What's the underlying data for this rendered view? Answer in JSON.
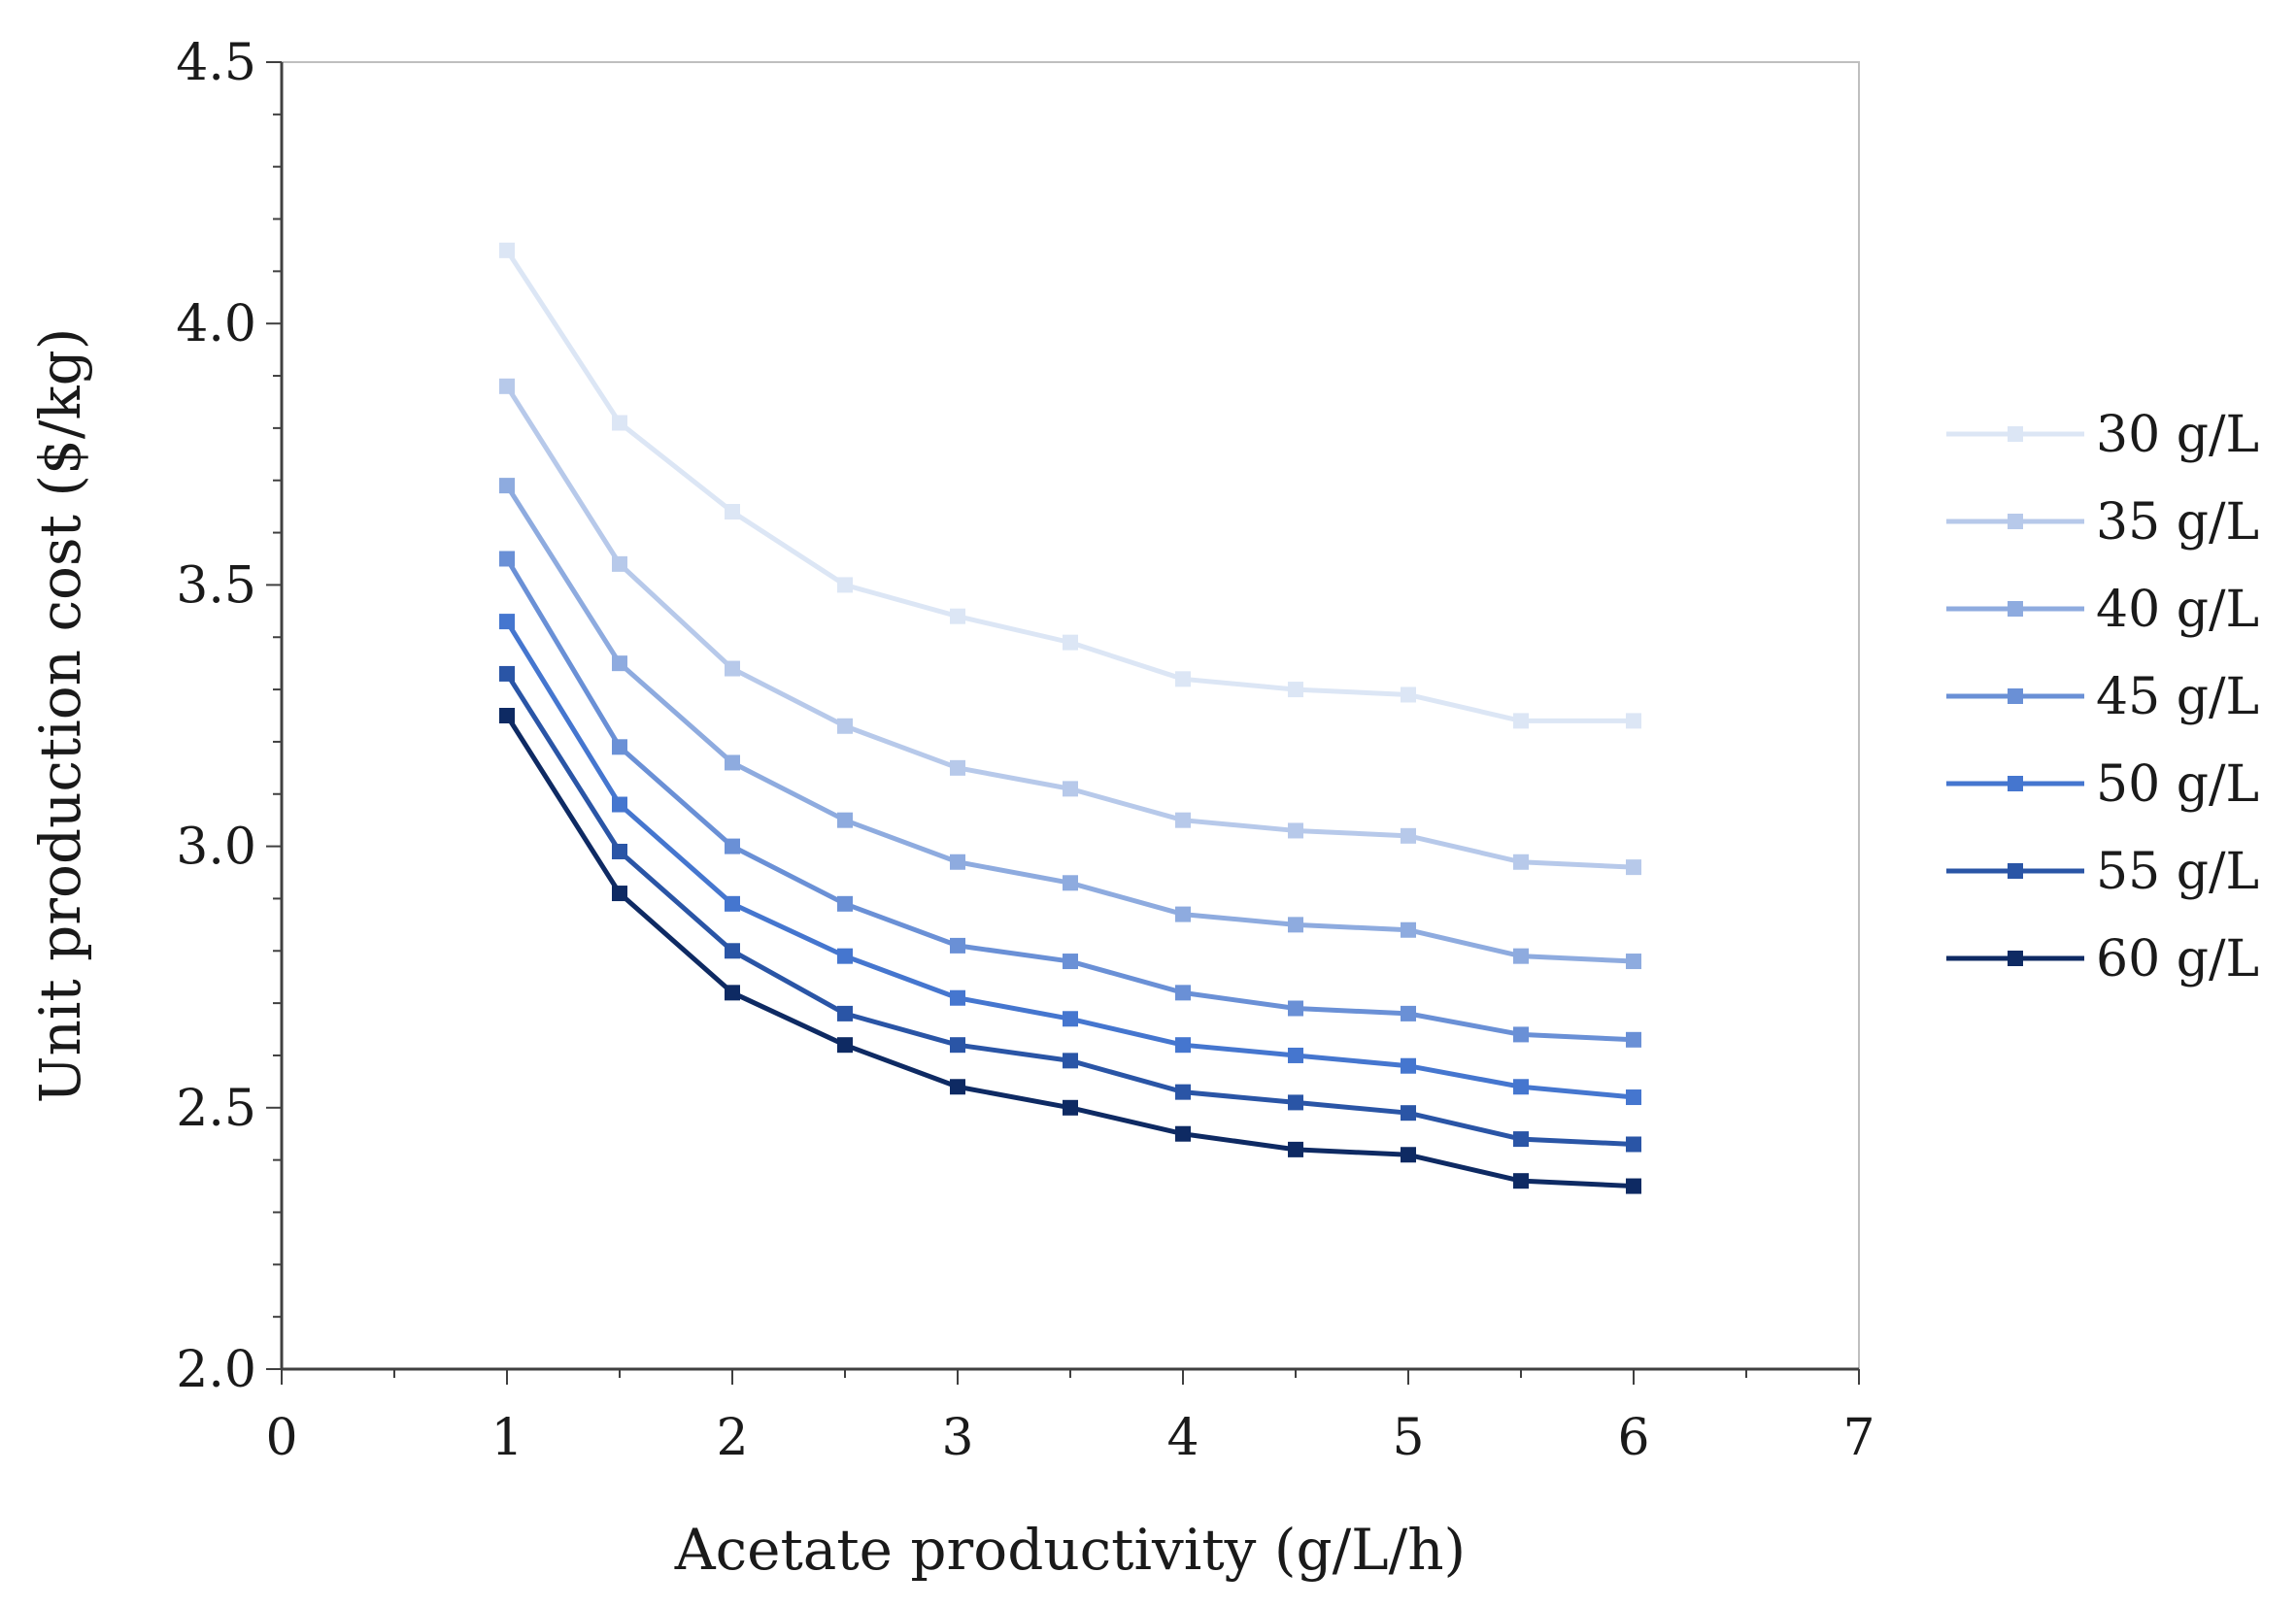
{
  "chart_data": {
    "type": "line",
    "title": "",
    "xlabel": "Acetate productivity (g/L/h)",
    "ylabel": "Unit production cost ($/kg)",
    "xlim": [
      0,
      7
    ],
    "ylim": [
      2.0,
      4.5
    ],
    "x_ticks": [
      "0",
      "1",
      "2",
      "3",
      "4",
      "5",
      "6",
      "7"
    ],
    "y_ticks": [
      "2.0",
      "2.5",
      "3.0",
      "3.5",
      "4.0",
      "4.5"
    ],
    "x_tick_values": [
      0,
      1,
      2,
      3,
      4,
      5,
      6,
      7
    ],
    "y_tick_values": [
      2.0,
      2.5,
      3.0,
      3.5,
      4.0,
      4.5
    ],
    "grid": false,
    "legend_position": "right",
    "x": [
      1,
      1.5,
      2,
      2.5,
      3,
      3.5,
      4,
      4.5,
      5,
      5.5,
      6
    ],
    "series": [
      {
        "name": "30 g/L",
        "color": "#dce6f5",
        "values": [
          4.14,
          3.81,
          3.64,
          3.5,
          3.44,
          3.39,
          3.32,
          3.3,
          3.29,
          3.24,
          3.24
        ]
      },
      {
        "name": "35 g/L",
        "color": "#b7c9ea",
        "values": [
          3.88,
          3.54,
          3.34,
          3.23,
          3.15,
          3.11,
          3.05,
          3.03,
          3.02,
          2.97,
          2.96
        ]
      },
      {
        "name": "40 g/L",
        "color": "#8eabdf",
        "values": [
          3.69,
          3.35,
          3.16,
          3.05,
          2.97,
          2.93,
          2.87,
          2.85,
          2.84,
          2.79,
          2.78
        ]
      },
      {
        "name": "45 g/L",
        "color": "#6a90d6",
        "values": [
          3.55,
          3.19,
          3.0,
          2.89,
          2.81,
          2.78,
          2.72,
          2.69,
          2.68,
          2.64,
          2.63
        ]
      },
      {
        "name": "50 g/L",
        "color": "#4576cf",
        "values": [
          3.43,
          3.08,
          2.89,
          2.79,
          2.71,
          2.67,
          2.62,
          2.6,
          2.58,
          2.54,
          2.52
        ]
      },
      {
        "name": "55 g/L",
        "color": "#2a55a6",
        "values": [
          3.33,
          2.99,
          2.8,
          2.68,
          2.62,
          2.59,
          2.53,
          2.51,
          2.49,
          2.44,
          2.43
        ]
      },
      {
        "name": "60 g/L",
        "color": "#0e2a63",
        "values": [
          3.25,
          2.91,
          2.72,
          2.62,
          2.54,
          2.5,
          2.45,
          2.42,
          2.41,
          2.36,
          2.35
        ]
      }
    ]
  }
}
